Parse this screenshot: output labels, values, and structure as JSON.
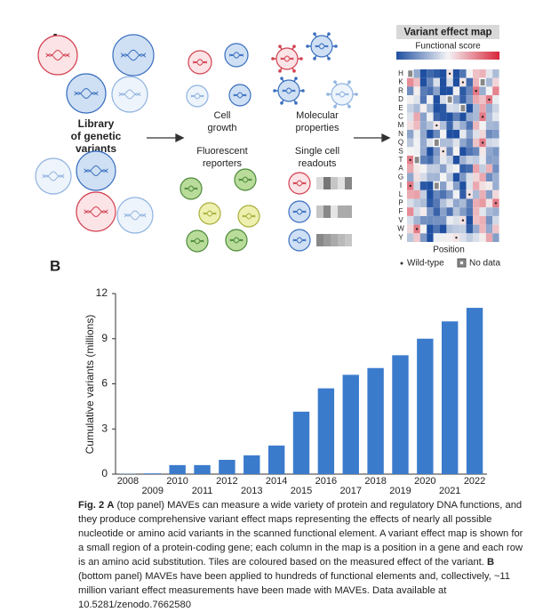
{
  "panel_a": {
    "label": "A",
    "library": [
      "Library",
      "of genetic",
      "variants"
    ],
    "cell_growth": [
      "Cell",
      "growth"
    ],
    "fluorescent": [
      "Fluorescent",
      "reporters"
    ],
    "molecular": [
      "Molecular",
      "properties"
    ],
    "single_cell": [
      "Single cell",
      "readouts"
    ],
    "map_title": "Variant effect map",
    "score_label": "Functional score",
    "rows": [
      "H",
      "K",
      "R",
      "D",
      "E",
      "C",
      "M",
      "N",
      "Q",
      "S",
      "T",
      "A",
      "G",
      "I",
      "L",
      "P",
      "F",
      "V",
      "W",
      "Y"
    ],
    "position_label": "Position",
    "legend_wild": "Wild-type",
    "legend_nodata": "No data"
  },
  "panel_b_label": "B",
  "chart_data": {
    "type": "bar",
    "y_label": "Cumulative variants (millions)",
    "categories": [
      "2008",
      "2009",
      "2010",
      "2011",
      "2012",
      "2013",
      "2014",
      "2015",
      "2016",
      "2017",
      "2018",
      "2019",
      "2020",
      "2021",
      "2022"
    ],
    "values": [
      0.02,
      0.05,
      0.6,
      0.6,
      0.95,
      1.25,
      1.9,
      4.15,
      5.7,
      6.6,
      7.05,
      7.9,
      9.0,
      10.15,
      11.05
    ],
    "color": "#3b7bcc",
    "ylim": [
      0,
      12
    ],
    "yticks": [
      0,
      3,
      6,
      9,
      12
    ],
    "grid": false
  },
  "caption": {
    "parts": [
      "Fig. 2",
      "A",
      "(top panel) MAVEs can measure a wide variety of protein and regulatory DNA functions, and they produce comprehensive variant effect maps representing the effects of nearly all possible nucleotide or amino acid variants in the scanned functional element. A variant effect map is shown for a small region of a protein-coding gene; each column in the map is a position in a gene and each row is an amino acid substitution. Tiles are coloured based on the measured effect of the variant.",
      "B",
      "(bottom panel) MAVEs have been applied to hundreds of functional elements and, collectively, ~11 million variant effect measurements have been made with MAVEs. Data available at 10.5281/zenodo.7662580"
    ]
  }
}
